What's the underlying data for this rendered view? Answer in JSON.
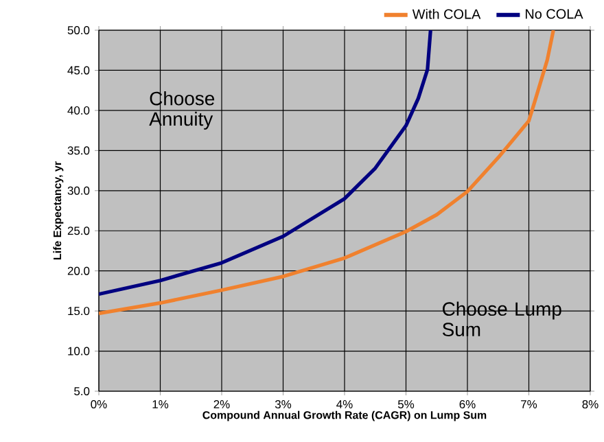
{
  "chart_data": {
    "type": "line",
    "xlabel": "Compound Annual Growth Rate (CAGR) on Lump Sum",
    "ylabel": "Life Expectancy, yr",
    "series": [
      {
        "name": "With COLA",
        "color": "#f0812e",
        "x": [
          0,
          1,
          2,
          3,
          4,
          5,
          5.5,
          6,
          6.5,
          7,
          7.1,
          7.3,
          7.4
        ],
        "values": [
          14.7,
          16.0,
          17.6,
          19.3,
          21.6,
          24.9,
          27.0,
          29.9,
          34.1,
          38.7,
          41.2,
          46.3,
          50.0
        ]
      },
      {
        "name": "No COLA",
        "color": "#000080",
        "x": [
          0,
          1,
          2,
          3,
          4,
          4.5,
          5,
          5.2,
          5.35,
          5.4
        ],
        "values": [
          17.1,
          18.8,
          21.0,
          24.3,
          29.0,
          32.8,
          38.1,
          41.5,
          45.1,
          50.0
        ]
      }
    ],
    "xlim": [
      0,
      8
    ],
    "ylim": [
      5,
      50
    ],
    "xticks": [
      {
        "value": 0,
        "label": "0%"
      },
      {
        "value": 1,
        "label": "1%"
      },
      {
        "value": 2,
        "label": "2%"
      },
      {
        "value": 3,
        "label": "3%"
      },
      {
        "value": 4,
        "label": "4%"
      },
      {
        "value": 5,
        "label": "5%"
      },
      {
        "value": 6,
        "label": "6%"
      },
      {
        "value": 7,
        "label": "7%"
      },
      {
        "value": 8,
        "label": "8%"
      }
    ],
    "yticks": [
      {
        "value": 5,
        "label": "5.0"
      },
      {
        "value": 10,
        "label": "10.0"
      },
      {
        "value": 15,
        "label": "15.0"
      },
      {
        "value": 20,
        "label": "20.0"
      },
      {
        "value": 25,
        "label": "25.0"
      },
      {
        "value": 30,
        "label": "30.0"
      },
      {
        "value": 35,
        "label": "35.0"
      },
      {
        "value": 40,
        "label": "40.0"
      },
      {
        "value": 45,
        "label": "45.0"
      },
      {
        "value": 50,
        "label": "50.0"
      }
    ],
    "grid": true,
    "legend": "top",
    "marker": "none",
    "line_style": "solid",
    "annotations": [
      "Choose Annuity",
      "Choose Lump Sum"
    ]
  }
}
